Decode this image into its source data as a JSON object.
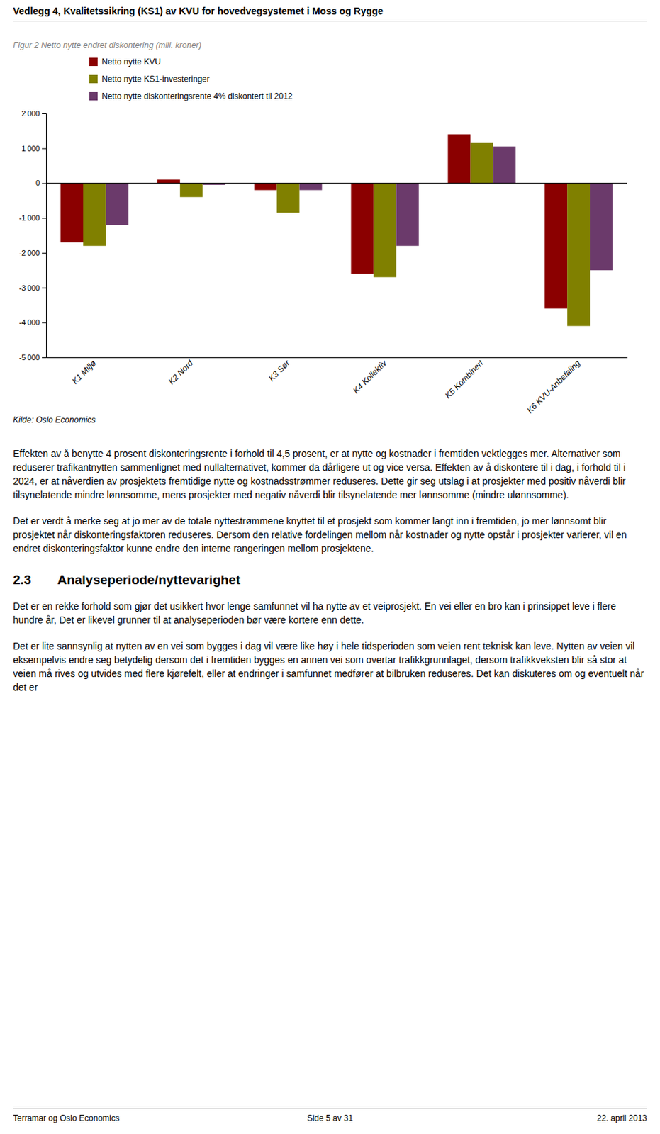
{
  "header": "Vedlegg 4, Kvalitetssikring (KS1) av KVU for hovedvegsystemet i Moss og Rygge",
  "chart_data": {
    "type": "bar",
    "title": "Figur 2 Netto nytte endret diskontering (mill. kroner)",
    "categories": [
      "K1 Miljø",
      "K2 Nord",
      "K3 Sør",
      "K4 Kollektiv",
      "K5 Kombinert",
      "K6 KVU-Anbefaling"
    ],
    "series": [
      {
        "name": "Netto nytte KVU",
        "color": "#8B0000",
        "values": [
          -1700,
          100,
          -200,
          -2600,
          1400,
          -3600
        ]
      },
      {
        "name": "Netto nytte KS1-investeringer",
        "color": "#808000",
        "values": [
          -1800,
          -400,
          -850,
          -2700,
          1150,
          -4100
        ]
      },
      {
        "name": "Netto nytte diskonteringsrente 4% diskontert til 2012",
        "color": "#6B3A6B",
        "values": [
          -1200,
          -50,
          -200,
          -1800,
          1050,
          -2500
        ]
      }
    ],
    "ylim": [
      -5000,
      2000
    ],
    "yticks": [
      {
        "value": -5000,
        "label": "-5 000"
      },
      {
        "value": -4000,
        "label": "-4 000"
      },
      {
        "value": -3000,
        "label": "-3 000"
      },
      {
        "value": -2000,
        "label": "-2 000"
      },
      {
        "value": -1000,
        "label": "-1 000"
      },
      0,
      {
        "value": 1000,
        "label": "1 000"
      },
      {
        "value": 2000,
        "label": "2 000"
      }
    ],
    "grid": false,
    "legend": "top"
  },
  "source": "Kilde: Oslo Economics",
  "body": [
    "Effekten av å benytte 4 prosent diskonteringsrente i forhold til 4,5 prosent, er at nytte og kostnader i fremtiden vektlegges mer. Alternativer som reduserer trafikantnytten sammenlignet med nullalternativet, kommer da dårligere ut og vice versa. Effekten av å diskontere til i dag, i forhold til i 2024, er at nåverdien av prosjektets fremtidige nytte og kostnadsstrømmer reduseres. Dette gir seg utslag i at prosjekter med positiv nåverdi blir tilsynelatende mindre lønnsomme, mens prosjekter med negativ nåverdi blir tilsynelatende mer lønnsomme (mindre ulønnsomme).",
    "Det er verdt å merke seg at jo mer av de totale nyttestrømmene knyttet til et prosjekt som kommer langt inn i fremtiden, jo mer lønnsomt blir prosjektet når diskonteringsfaktoren reduseres. Dersom den relative fordelingen mellom når kostnader og nytte opstår i prosjekter varierer, vil en endret diskonteringsfaktor kunne endre den interne rangeringen mellom prosjektene."
  ],
  "section_heading": "2.3  Analyseperiode/nyttevarighet",
  "section_body": [
    "Det er en rekke forhold som gjør det usikkert hvor lenge samfunnet vil ha nytte av et veiprosjekt. En vei eller en bro kan i prinsippet leve i flere hundre år, Det er likevel grunner til at analyseperioden bør være kortere enn dette.",
    "Det er lite sannsynlig at nytten av en vei som bygges i dag vil være like høy i hele tidsperioden som veien rent teknisk kan leve. Nytten av veien vil eksempelvis endre seg betydelig dersom det i fremtiden bygges en annen vei som overtar trafikkgrunnlaget, dersom trafikkveksten blir så stor at veien må rives og utvides med flere kjørefelt, eller at endringer i samfunnet medfører at bilbruken reduseres. Det kan diskuteres om og eventuelt når det er"
  ],
  "footer": {
    "left": "Terramar og Oslo Economics",
    "center": "Side 5 av 31",
    "right": "22. april 2013"
  }
}
